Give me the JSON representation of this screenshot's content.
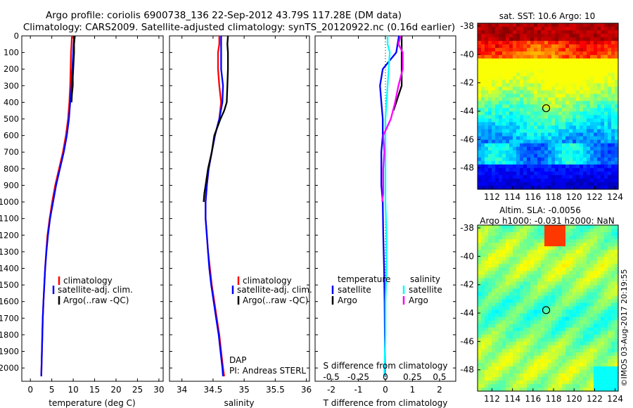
{
  "header": {
    "line1": "Argo profile: coriolis 6900738_136 22-Sep-2012 43.79S 117.28E (DM data)",
    "line2": "Climatology: CARS2009. Satellite-adjusted climatology: synTS_20120922.nc (0.16d earlier)"
  },
  "colors": {
    "climatology": "#ff0000",
    "satellite": "#0000ff",
    "argo": "#000000",
    "sat_salinity": "#00ffff",
    "argo_salinity": "#ff00ff"
  },
  "chart_data": [
    {
      "type": "line",
      "id": "temperature",
      "xlabel": "temperature (deg C)",
      "ylabel": "",
      "xlim": [
        -2,
        31
      ],
      "ylim": [
        2080,
        0
      ],
      "xticks": [
        "0",
        "5",
        "10",
        "15",
        "20",
        "25",
        "30"
      ],
      "yticks": [
        "0",
        "100",
        "200",
        "300",
        "400",
        "500",
        "600",
        "700",
        "800",
        "900",
        "1000",
        "1100",
        "1200",
        "1300",
        "1400",
        "1500",
        "1600",
        "1700",
        "1800",
        "1900",
        "2000"
      ],
      "legend": {
        "position": "lower-center",
        "entries": [
          "climatology",
          "satellite-adj. clim.",
          "Argo(..raw -QC)"
        ]
      },
      "series": [
        {
          "name": "climatology",
          "depth": [
            0,
            50,
            100,
            200,
            300,
            400,
            500,
            600,
            700,
            800,
            900,
            1000,
            1100,
            1200,
            1300,
            1400,
            1500,
            1600,
            1700,
            1800,
            1900,
            2000,
            2050
          ],
          "values": [
            9.7,
            9.6,
            9.5,
            9.4,
            9.3,
            9.1,
            8.8,
            8.3,
            7.6,
            6.7,
            5.8,
            5.1,
            4.5,
            4.0,
            3.7,
            3.45,
            3.25,
            3.05,
            2.9,
            2.8,
            2.7,
            2.6,
            2.55
          ]
        },
        {
          "name": "satellite-adj. clim.",
          "depth": [
            0,
            50,
            100,
            200,
            300,
            400,
            500,
            600,
            700,
            800,
            900,
            1000,
            1100,
            1200,
            1300,
            1400,
            1500,
            1600,
            1700,
            1800,
            1900,
            2000,
            2050
          ],
          "values": [
            10.2,
            10.1,
            10.0,
            9.8,
            9.6,
            9.3,
            9.0,
            8.5,
            7.8,
            6.9,
            6.0,
            5.3,
            4.6,
            4.1,
            3.75,
            3.45,
            3.25,
            3.05,
            2.9,
            2.8,
            2.7,
            2.6,
            2.55
          ]
        },
        {
          "name": "Argo(..raw -QC)",
          "depth": [
            0,
            20,
            50,
            100,
            150,
            200,
            250,
            300,
            350,
            400
          ],
          "values": [
            10.4,
            10.3,
            10.2,
            10.2,
            10.1,
            10.0,
            9.9,
            9.9,
            9.7,
            9.6
          ]
        }
      ]
    },
    {
      "type": "line",
      "id": "salinity",
      "xlabel": "salinity",
      "xlim": [
        33.8,
        36.05
      ],
      "ylim": [
        2080,
        0
      ],
      "xticks": [
        "34",
        "34.5",
        "35",
        "35.5",
        "36"
      ],
      "legend": {
        "position": "lower-center",
        "entries": [
          "climatology",
          "satellite-adj. clim.",
          "Argo(..raw -QC)"
        ]
      },
      "annotation": [
        "DAP",
        "PI: Andreas STERL"
      ],
      "series": [
        {
          "name": "climatology",
          "depth": [
            0,
            50,
            100,
            200,
            300,
            400,
            500,
            600,
            700,
            800,
            900,
            1000,
            1100,
            1200,
            1300,
            1400,
            1500,
            1600,
            1700,
            1800,
            1900,
            2000,
            2050
          ],
          "values": [
            34.6,
            34.6,
            34.58,
            34.58,
            34.6,
            34.63,
            34.6,
            34.53,
            34.48,
            34.43,
            34.4,
            34.38,
            34.38,
            34.4,
            34.42,
            34.45,
            34.48,
            34.52,
            34.56,
            34.6,
            34.63,
            34.66,
            34.68
          ]
        },
        {
          "name": "satellite-adj. clim.",
          "depth": [
            0,
            50,
            100,
            200,
            300,
            400,
            500,
            600,
            700,
            800,
            900,
            1000,
            1100,
            1200,
            1300,
            1400,
            1500,
            1600,
            1700,
            1800,
            1900,
            2000,
            2050
          ],
          "values": [
            34.63,
            34.63,
            34.63,
            34.63,
            34.66,
            34.65,
            34.6,
            34.53,
            34.48,
            34.43,
            34.4,
            34.38,
            34.38,
            34.4,
            34.42,
            34.44,
            34.47,
            34.51,
            34.55,
            34.59,
            34.62,
            34.65,
            34.66
          ]
        },
        {
          "name": "Argo(..raw -QC)",
          "depth": [
            0,
            50,
            100,
            200,
            300,
            400,
            450,
            500,
            550,
            600,
            700,
            800,
            900,
            950,
            1000
          ],
          "values": [
            34.74,
            34.73,
            34.74,
            34.74,
            34.73,
            34.72,
            34.68,
            34.62,
            34.57,
            34.52,
            34.48,
            34.42,
            34.38,
            34.36,
            34.35
          ]
        }
      ]
    },
    {
      "type": "line",
      "id": "difference",
      "xlabel": "T difference from climatology",
      "x2label": "S difference from climatology",
      "xlim": [
        -2.6,
        2.6
      ],
      "ylim": [
        2080,
        0
      ],
      "xticks": [
        "-2",
        "-1",
        "0",
        "1",
        "2"
      ],
      "x2ticks": [
        "-0.5",
        "-0.25",
        "0",
        "0.25",
        "0.5"
      ],
      "legend": {
        "position": "lower-center",
        "temperature_title": "temperature",
        "salinity_title": "salinity",
        "entries": [
          "satellite",
          "Argo",
          "satellite",
          "Argo"
        ]
      },
      "series": [
        {
          "name": "temperature satellite",
          "depth": [
            0,
            50,
            100,
            200,
            300,
            400,
            500,
            600,
            700,
            800,
            900,
            1000,
            1200,
            1400,
            1600,
            1800,
            2000,
            2050
          ],
          "values": [
            0.5,
            0.45,
            0.4,
            -0.1,
            -0.2,
            -0.15,
            -0.1,
            -0.1,
            -0.15,
            -0.15,
            -0.15,
            -0.1,
            -0.08,
            -0.05,
            -0.03,
            -0.02,
            -0.02,
            -0.02
          ]
        },
        {
          "name": "temperature Argo",
          "depth": [
            0,
            100,
            200,
            300,
            350,
            400,
            450
          ],
          "values": [
            0.6,
            0.6,
            0.6,
            0.6,
            0.5,
            0.4,
            0.3
          ]
        },
        {
          "name": "salinity satellite",
          "depth": [
            0,
            50,
            100,
            200,
            300,
            400,
            500,
            600,
            800,
            1000,
            1200,
            1400,
            1600,
            1800,
            2000,
            2050
          ],
          "values": [
            0.02,
            0.02,
            0.04,
            0.03,
            0.02,
            0.01,
            0.0,
            0.0,
            0.0,
            0.0,
            0.01,
            0.01,
            0.0,
            0.0,
            -0.01,
            -0.01
          ]
        },
        {
          "name": "salinity Argo",
          "depth": [
            0,
            50,
            100,
            200,
            300,
            400,
            500,
            600,
            700,
            800,
            900,
            950,
            1000
          ],
          "values": [
            0.14,
            0.12,
            0.16,
            0.16,
            0.12,
            0.09,
            0.05,
            -0.02,
            -0.01,
            -0.02,
            -0.02,
            -0.02,
            -0.03
          ]
        }
      ]
    },
    {
      "type": "heatmap",
      "id": "sst_map",
      "title": "sat. SST: 10.6 Argo: 10",
      "xticks": [
        "112",
        "114",
        "116",
        "118",
        "120",
        "122",
        "124"
      ],
      "yticks": [
        "-38",
        "-40",
        "-42",
        "-44",
        "-46",
        "-48"
      ],
      "marker": {
        "lon": 117.28,
        "lat": -43.79
      }
    },
    {
      "type": "heatmap",
      "id": "sla_map",
      "title": "Altim. SLA: -0.0056",
      "subtitle": "Argo h1000: -0.031 h2000: NaN",
      "xticks": [
        "112",
        "114",
        "116",
        "118",
        "120",
        "122",
        "124"
      ],
      "yticks": [
        "-38",
        "-40",
        "-42",
        "-44",
        "-46",
        "-48"
      ],
      "marker": {
        "lon": 117.28,
        "lat": -43.79
      }
    }
  ],
  "footer": {
    "credit": "©IMOS 03-Aug-2017 20:19:55"
  }
}
